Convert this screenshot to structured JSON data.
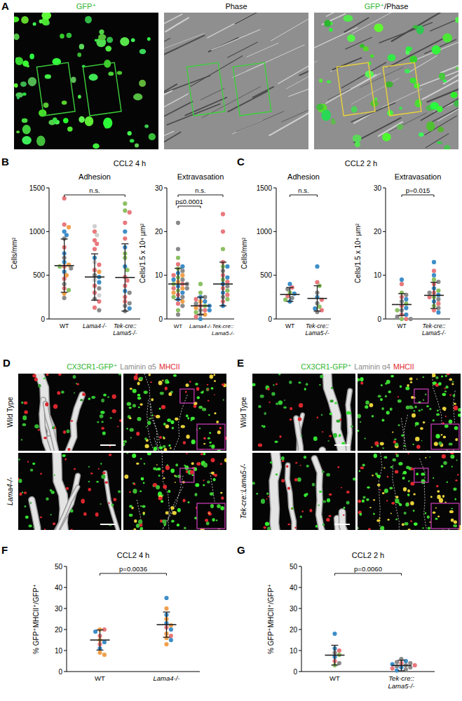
{
  "figure": {
    "A": {
      "letter": "A",
      "images": [
        [
          {
            "text": "GFP⁺",
            "color": "#2fb52f"
          }
        ],
        [
          {
            "text": "Phase",
            "color": "#000000"
          }
        ],
        [
          {
            "text": "GFP⁺",
            "color": "#2fb52f"
          },
          {
            "text": "/Phase",
            "color": "#000000"
          }
        ]
      ]
    },
    "B": {
      "letter": "B",
      "title": "CCL2 4 h"
    },
    "C": {
      "letter": "C",
      "title": "CCL2 2 h"
    },
    "D": {
      "letter": "D",
      "header": [
        {
          "text": "CX3CR1-GFP⁺",
          "color": "#2fb52f"
        },
        {
          "text": "Laminin α5",
          "color": "#8a8a8a"
        },
        {
          "text": "MHCII",
          "color": "#e0282f"
        }
      ],
      "rows": [
        "Wild Type",
        "Lama4-/-"
      ]
    },
    "E": {
      "letter": "E",
      "header": [
        {
          "text": "CX3CR1-GFP⁺",
          "color": "#2fb52f"
        },
        {
          "text": "Laminin α4",
          "color": "#8a8a8a"
        },
        {
          "text": "MHCII",
          "color": "#e0282f"
        }
      ],
      "rows": [
        "Wild Type",
        "Tek-cre::Lama5-/-"
      ]
    },
    "F": {
      "letter": "F"
    },
    "G": {
      "letter": "G"
    }
  },
  "chart_data": [
    {
      "type": "strip",
      "title": "Adhesion",
      "y_label": "Cells/mm²",
      "categories": [
        "WT",
        "Lama4-/-",
        "Tek-cre::Lama5-/-"
      ],
      "ylim": [
        0,
        1500
      ],
      "yticks": [
        0,
        500,
        1000,
        1500
      ],
      "grid": false,
      "marker": "circle",
      "values": [
        [
          1380,
          1080,
          1050,
          1000,
          960,
          920,
          820,
          750,
          700,
          650,
          620,
          600,
          600,
          580,
          540,
          500,
          460,
          400,
          350,
          330,
          290,
          240
        ],
        [
          1060,
          1000,
          960,
          900,
          860,
          800,
          700,
          650,
          620,
          560,
          540,
          500,
          480,
          450,
          420,
          380,
          350,
          300,
          270,
          230,
          200,
          130,
          100
        ],
        [
          1320,
          1240,
          1220,
          1100,
          1000,
          920,
          820,
          750,
          700,
          600,
          560,
          480,
          440,
          380,
          320,
          300,
          250,
          200,
          180,
          150,
          120,
          90
        ]
      ],
      "colors": [
        [
          "#e8787c",
          "#e8787c",
          "#f0a04b",
          "#3d8ec9",
          "#3d8ec9",
          "#8a8a8a",
          "#e8787c",
          "#3d8ec9",
          "#8a8a8a",
          "#3d8ec9",
          "#f0a04b",
          "#e8787c",
          "#8cc063",
          "#8a8a8a",
          "#3d8ec9",
          "#f0a04b",
          "#e8787c",
          "#8a8a8a",
          "#e8787c",
          "#8cc063",
          "#f0a04b",
          "#8a8a8a"
        ],
        [
          "#d0d0d0",
          "#e8787c",
          "#d0d0d0",
          "#e8787c",
          "#e8787c",
          "#e8787c",
          "#3d8ec9",
          "#d0d0d0",
          "#e8787c",
          "#e8787c",
          "#f0a04b",
          "#8a8a8a",
          "#3d8ec9",
          "#d0d0d0",
          "#3d8ec9",
          "#e8787c",
          "#8a8a8a",
          "#e8787c",
          "#d0d0d0",
          "#8a8a8a",
          "#e8787c",
          "#e8787c",
          "#8a8a8a"
        ],
        [
          "#8cc063",
          "#8cc063",
          "#e8787c",
          "#e8787c",
          "#3d8ec9",
          "#e8787c",
          "#3d8ec9",
          "#8cc063",
          "#8cc063",
          "#3d8ec9",
          "#8cc063",
          "#e8787c",
          "#e8787c",
          "#e8787c",
          "#3d8ec9",
          "#8a8a8a",
          "#e8787c",
          "#e8787c",
          "#8a8a8a",
          "#8a8a8a",
          "#3d8ec9",
          "#8a8a8a"
        ]
      ],
      "means": [
        610,
        480,
        475
      ],
      "errors": [
        305,
        265,
        385
      ],
      "annotations": [
        {
          "text": "n.s.",
          "from": 0,
          "to": 2
        }
      ]
    },
    {
      "type": "strip",
      "title": "Extravasation",
      "y_label": "Cells/1.5 x 10⁴ µm²",
      "categories": [
        "WT",
        "Lama4-/-",
        "Tek-cre::Lama5-/-"
      ],
      "ylim": [
        0,
        30
      ],
      "yticks": [
        0,
        10,
        20,
        30
      ],
      "grid": false,
      "marker": "circle",
      "values": [
        [
          22,
          16,
          14,
          12.5,
          12,
          11.5,
          11,
          10.5,
          10,
          10,
          9.5,
          9,
          9,
          8.5,
          8,
          8,
          8,
          7.5,
          7,
          7,
          7,
          6.5,
          6,
          6,
          5.5,
          5,
          5,
          4.5,
          4,
          3.5,
          3,
          2,
          1
        ],
        [
          8,
          6,
          5,
          5,
          4.5,
          4,
          4,
          3.5,
          3,
          3,
          3,
          2.5,
          2,
          2,
          2,
          1.5,
          1,
          1,
          0.5,
          0
        ],
        [
          24,
          20,
          16,
          13,
          12,
          12,
          11,
          10,
          9.5,
          9,
          8.5,
          8,
          7.5,
          7,
          6.5,
          6,
          5.5,
          5,
          4.5,
          4,
          3
        ]
      ],
      "colors": [
        [
          "#8a8a8a",
          "#8a8a8a",
          "#8cc063",
          "#e8787c",
          "#3d8ec9",
          "#8cc063",
          "#8a8a8a",
          "#3d8ec9",
          "#f0a04b",
          "#e8787c",
          "#8cc063",
          "#8a8a8a",
          "#3d8ec9",
          "#f0a04b",
          "#e8787c",
          "#8cc063",
          "#8a8a8a",
          "#3d8ec9",
          "#f0a04b",
          "#e8787c",
          "#8a8a8a",
          "#8cc063",
          "#3d8ec9",
          "#f0a04b",
          "#e8787c",
          "#8a8a8a",
          "#8cc063",
          "#3d8ec9",
          "#f0a04b",
          "#e8787c",
          "#8a8a8a",
          "#8cc063",
          "#8a8a8a"
        ],
        [
          "#8cc063",
          "#8cc063",
          "#3d8ec9",
          "#8a8a8a",
          "#e8787c",
          "#f0a04b",
          "#3d8ec9",
          "#8a8a8a",
          "#e8787c",
          "#8cc063",
          "#3d8ec9",
          "#f0a04b",
          "#8a8a8a",
          "#e8787c",
          "#3d8ec9",
          "#8cc063",
          "#8a8a8a",
          "#f0a04b",
          "#e8787c",
          "#3d8ec9"
        ],
        [
          "#e8787c",
          "#e8787c",
          "#8cc063",
          "#e8787c",
          "#8cc063",
          "#3d8ec9",
          "#8a8a8a",
          "#e8787c",
          "#3d8ec9",
          "#8cc063",
          "#e8787c",
          "#3d8ec9",
          "#8a8a8a",
          "#e8787c",
          "#8cc063",
          "#3d8ec9",
          "#e8787c",
          "#8a8a8a",
          "#8cc063",
          "#e8787c",
          "#3d8ec9"
        ]
      ],
      "means": [
        8,
        3,
        8
      ],
      "errors": [
        3.6,
        2,
        5
      ],
      "annotations": [
        {
          "text": "n.s.",
          "from": 0,
          "to": 2
        },
        {
          "text": "p≤0.0001",
          "from": 0,
          "to": 1
        }
      ]
    },
    {
      "type": "strip",
      "title": "Adhesion",
      "y_label": "Cells/mm²",
      "categories": [
        "WT",
        "Tek-cre::Lama5-/-"
      ],
      "ylim": [
        0,
        1500
      ],
      "yticks": [
        0,
        500,
        1000,
        1500
      ],
      "grid": false,
      "marker": "circle",
      "values": [
        [
          400,
          360,
          340,
          300,
          290,
          260,
          240,
          220,
          200
        ],
        [
          600,
          420,
          380,
          300,
          250,
          220,
          180,
          140,
          120,
          100,
          80
        ]
      ],
      "colors": [
        [
          "#3d8ec9",
          "#e8787c",
          "#8a8a8a",
          "#8cc063",
          "#3d8ec9",
          "#e8787c",
          "#8a8a8a",
          "#8cc063",
          "#3d8ec9"
        ],
        [
          "#3d8ec9",
          "#e8787c",
          "#8cc063",
          "#8a8a8a",
          "#3d8ec9",
          "#e8787c",
          "#8a8a8a",
          "#8cc063",
          "#3d8ec9",
          "#e8787c",
          "#8a8a8a"
        ]
      ],
      "means": [
        280,
        235
      ],
      "errors": [
        80,
        145
      ],
      "annotations": [
        {
          "text": "n.s.",
          "from": 0,
          "to": 1
        }
      ]
    },
    {
      "type": "strip",
      "title": "Extravasation",
      "y_label": "Cells/1.5 x 10⁴ µm²",
      "categories": [
        "WT",
        "Tek-cre::Lama5-/-"
      ],
      "ylim": [
        0,
        30
      ],
      "yticks": [
        0,
        10,
        20,
        30
      ],
      "grid": false,
      "marker": "circle",
      "values": [
        [
          9,
          8,
          6,
          5.5,
          5,
          4.5,
          4,
          3.5,
          3,
          2.5,
          2,
          2,
          1,
          1,
          0.5,
          0,
          0,
          0
        ],
        [
          13,
          11,
          10,
          9,
          8.5,
          8,
          7,
          6.5,
          6,
          6,
          5.5,
          5,
          5,
          4.5,
          4,
          3.5,
          3,
          2.5,
          2,
          1.5
        ]
      ],
      "colors": [
        [
          "#3d8ec9",
          "#e8787c",
          "#8cc063",
          "#8a8a8a",
          "#e8787c",
          "#3d8ec9",
          "#8a8a8a",
          "#8cc063",
          "#e8787c",
          "#3d8ec9",
          "#8a8a8a",
          "#8cc063",
          "#e8787c",
          "#3d8ec9",
          "#8a8a8a",
          "#8cc063",
          "#e8787c",
          "#8a8a8a"
        ],
        [
          "#3d8ec9",
          "#e8787c",
          "#3d8ec9",
          "#8cc063",
          "#8a8a8a",
          "#e8787c",
          "#3d8ec9",
          "#8cc063",
          "#e8787c",
          "#8a8a8a",
          "#3d8ec9",
          "#8cc063",
          "#e8787c",
          "#8a8a8a",
          "#3d8ec9",
          "#e8787c",
          "#8cc063",
          "#8a8a8a",
          "#e8787c",
          "#3d8ec9"
        ]
      ],
      "means": [
        3.3,
        5.4
      ],
      "errors": [
        2.5,
        3
      ],
      "annotations": [
        {
          "text": "p=0.015",
          "from": 0,
          "to": 1
        }
      ]
    },
    {
      "type": "strip",
      "title": "CCL2 4 h",
      "y_label": "% GFP⁺MHCII⁺/GFP⁺",
      "categories": [
        "WT",
        "Lama4-/-"
      ],
      "ylim": [
        0,
        50
      ],
      "yticks": [
        0,
        10,
        20,
        30,
        40,
        50
      ],
      "grid": false,
      "marker": "circle",
      "values": [
        [
          20,
          20,
          19,
          17,
          15,
          14,
          13,
          11,
          9,
          8
        ],
        [
          35,
          30,
          27,
          25,
          23,
          22,
          21,
          20,
          18,
          17,
          16,
          15,
          13
        ]
      ],
      "colors": [
        [
          "#f0a04b",
          "#e8787c",
          "#3d8ec9",
          "#e8787c",
          "#f0a04b",
          "#3d8ec9",
          "#e8787c",
          "#3d8ec9",
          "#f0a04b",
          "#f0a04b"
        ],
        [
          "#3d8ec9",
          "#f0a04b",
          "#3d8ec9",
          "#f0a04b",
          "#3d8ec9",
          "#f0a04b",
          "#e8787c",
          "#3d8ec9",
          "#f0a04b",
          "#e8787c",
          "#f0a04b",
          "#3d8ec9",
          "#f0a04b"
        ]
      ],
      "means": [
        15,
        22.3
      ],
      "errors": [
        4.8,
        6
      ],
      "annotations": [
        {
          "text": "p=0.0036",
          "from": 0,
          "to": 1
        }
      ]
    },
    {
      "type": "strip",
      "title": "CCL2 2 h",
      "y_label": "% GFP⁺MHCII⁺/GFP⁺",
      "categories": [
        "WT",
        "Tek-cre::Lama5-/-"
      ],
      "ylim": [
        0,
        50
      ],
      "yticks": [
        0,
        10,
        20,
        30,
        40,
        50
      ],
      "grid": false,
      "marker": "circle",
      "values": [
        [
          18,
          11,
          10,
          9,
          8,
          7,
          5,
          4,
          3
        ],
        [
          6,
          5,
          4.5,
          4,
          4,
          3.5,
          3,
          3,
          2.5,
          2,
          2,
          1.5,
          1,
          0.5
        ]
      ],
      "colors": [
        [
          "#3d8ec9",
          "#3d8ec9",
          "#e8787c",
          "#8a8a8a",
          "#8cc063",
          "#3d8ec9",
          "#e8787c",
          "#8a8a8a",
          "#8cc063"
        ],
        [
          "#8a8a8a",
          "#3d8ec9",
          "#8a8a8a",
          "#e8787c",
          "#8a8a8a",
          "#3d8ec9",
          "#8a8a8a",
          "#e8787c",
          "#8a8a8a",
          "#3d8ec9",
          "#8a8a8a",
          "#e8787c",
          "#8a8a8a",
          "#3d8ec9"
        ]
      ],
      "means": [
        7.8,
        2.9
      ],
      "errors": [
        4.7,
        2.5
      ],
      "annotations": [
        {
          "text": "p=0.0060",
          "from": 0,
          "to": 1
        }
      ]
    }
  ]
}
